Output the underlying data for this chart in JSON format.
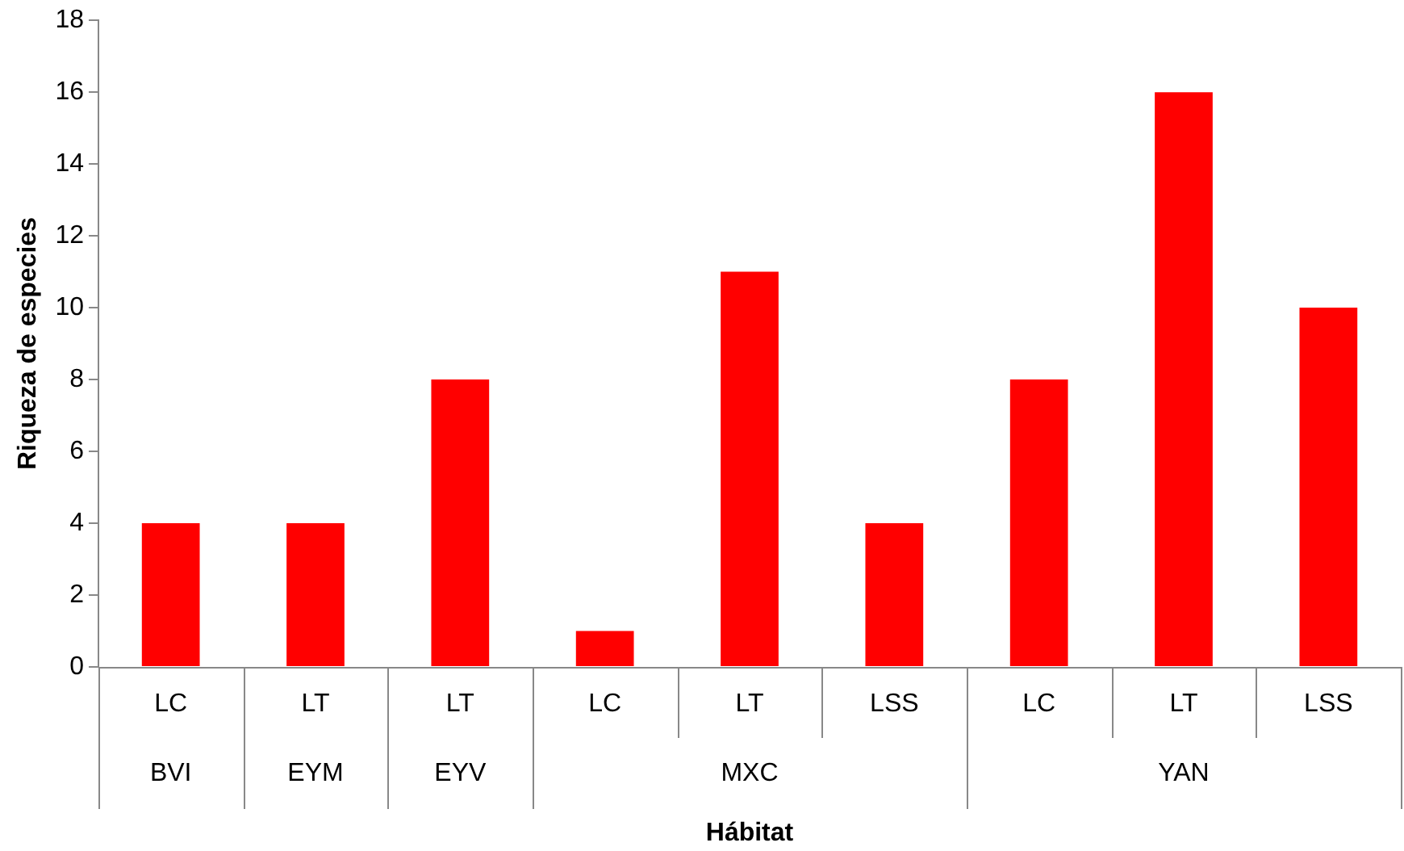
{
  "chart_data": {
    "type": "bar",
    "xlabel": "Hábitat",
    "ylabel": "Riqueza de especies",
    "categories": [
      "LC",
      "LT",
      "LT",
      "LC",
      "LT",
      "LSS",
      "LC",
      "LT",
      "LSS"
    ],
    "values": [
      4,
      4,
      8,
      1,
      11,
      4,
      8,
      16,
      10
    ],
    "color": "#ff0000",
    "ylim": [
      0,
      18
    ],
    "yticks": [
      0,
      2,
      4,
      6,
      8,
      10,
      12,
      14,
      16,
      18
    ],
    "annotations": [
      "BVI",
      "EYM",
      "EYV",
      "MXC",
      "YAN"
    ],
    "grid": false,
    "legend": false
  }
}
